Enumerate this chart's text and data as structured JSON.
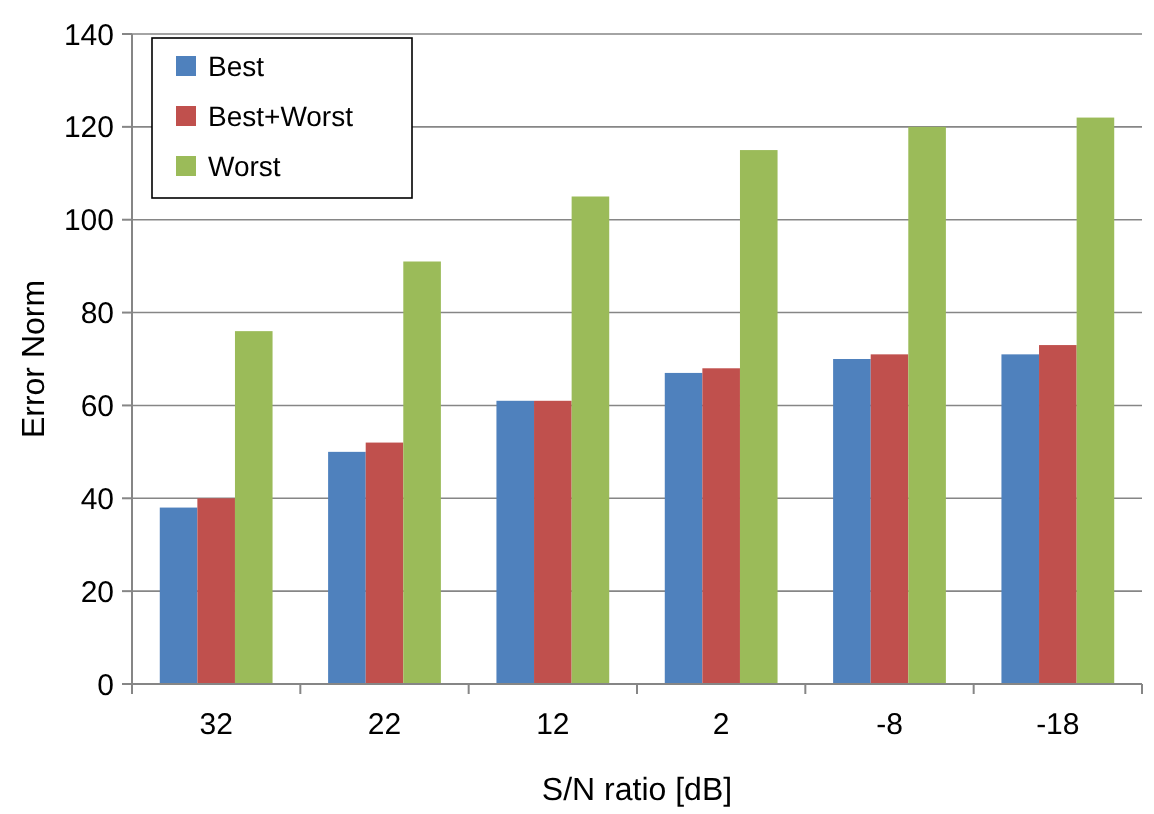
{
  "chart_data": {
    "type": "bar",
    "xlabel": "S/N ratio [dB]",
    "ylabel": "Error Norm",
    "categories": [
      "32",
      "22",
      "12",
      "2",
      "-8",
      "-18"
    ],
    "series": [
      {
        "name": "Best",
        "color": "#4f81bd",
        "values": [
          38,
          50,
          61,
          67,
          70,
          71
        ]
      },
      {
        "name": "Best+Worst",
        "color": "#c0504d",
        "values": [
          40,
          52,
          61,
          68,
          71,
          73
        ]
      },
      {
        "name": "Worst",
        "color": "#9bbb59",
        "values": [
          76,
          91,
          105,
          115,
          120,
          122
        ]
      }
    ],
    "ylim": [
      0,
      140
    ],
    "yticks": [
      0,
      20,
      40,
      60,
      80,
      100,
      120,
      140
    ],
    "grid": "y",
    "legend": "top left"
  }
}
